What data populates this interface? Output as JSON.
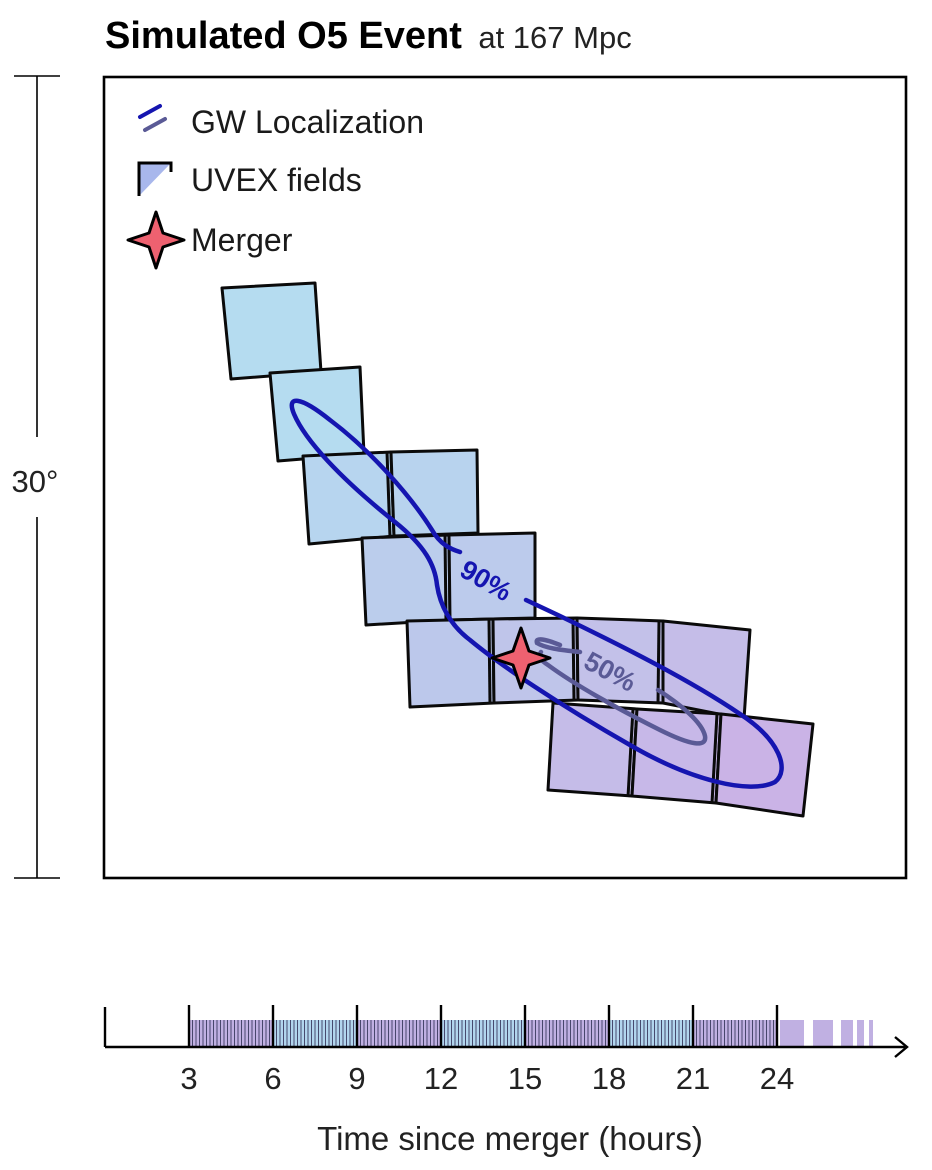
{
  "title": {
    "main": "Simulated O5 Event",
    "sub": "at 167 Mpc"
  },
  "scale_bar": {
    "label": "30°"
  },
  "legend": {
    "items": [
      {
        "key": "gw",
        "label": "GW Localization",
        "icon": "contour-lines-icon"
      },
      {
        "key": "fields",
        "label": "UVEX fields",
        "icon": "field-tile-icon"
      },
      {
        "key": "merger",
        "label": "Merger",
        "icon": "four-point-star-icon"
      }
    ]
  },
  "contours": {
    "outer_label": "90%",
    "inner_label": "50%",
    "outer_color": "#1515b0",
    "inner_color": "#5a5a96"
  },
  "colors": {
    "merger_star": "#ee6170",
    "field_early": "#b5dcf0",
    "field_late": "#c6aee6",
    "frame": "#000000"
  },
  "timeline": {
    "ticks": [
      "3",
      "6",
      "9",
      "12",
      "15",
      "18",
      "21",
      "24"
    ],
    "tick_values": [
      3,
      6,
      9,
      12,
      15,
      18,
      21,
      24
    ],
    "xlabel": "Time since merger (hours)",
    "block_colors": [
      "#c0b0e2",
      "#b2d6ee"
    ]
  }
}
